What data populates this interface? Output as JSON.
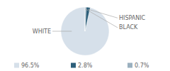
{
  "chart_data": {
    "type": "pie",
    "categories": [
      "WHITE",
      "HISPANIC",
      "BLACK"
    ],
    "values": [
      96.5,
      2.8,
      0.7
    ],
    "value_labels": [
      "96.5%",
      "2.8%",
      "0.7%"
    ],
    "colors": [
      "#d6e0ea",
      "#2d5f7a",
      "#9ab0bf"
    ],
    "legend": "bottom"
  }
}
